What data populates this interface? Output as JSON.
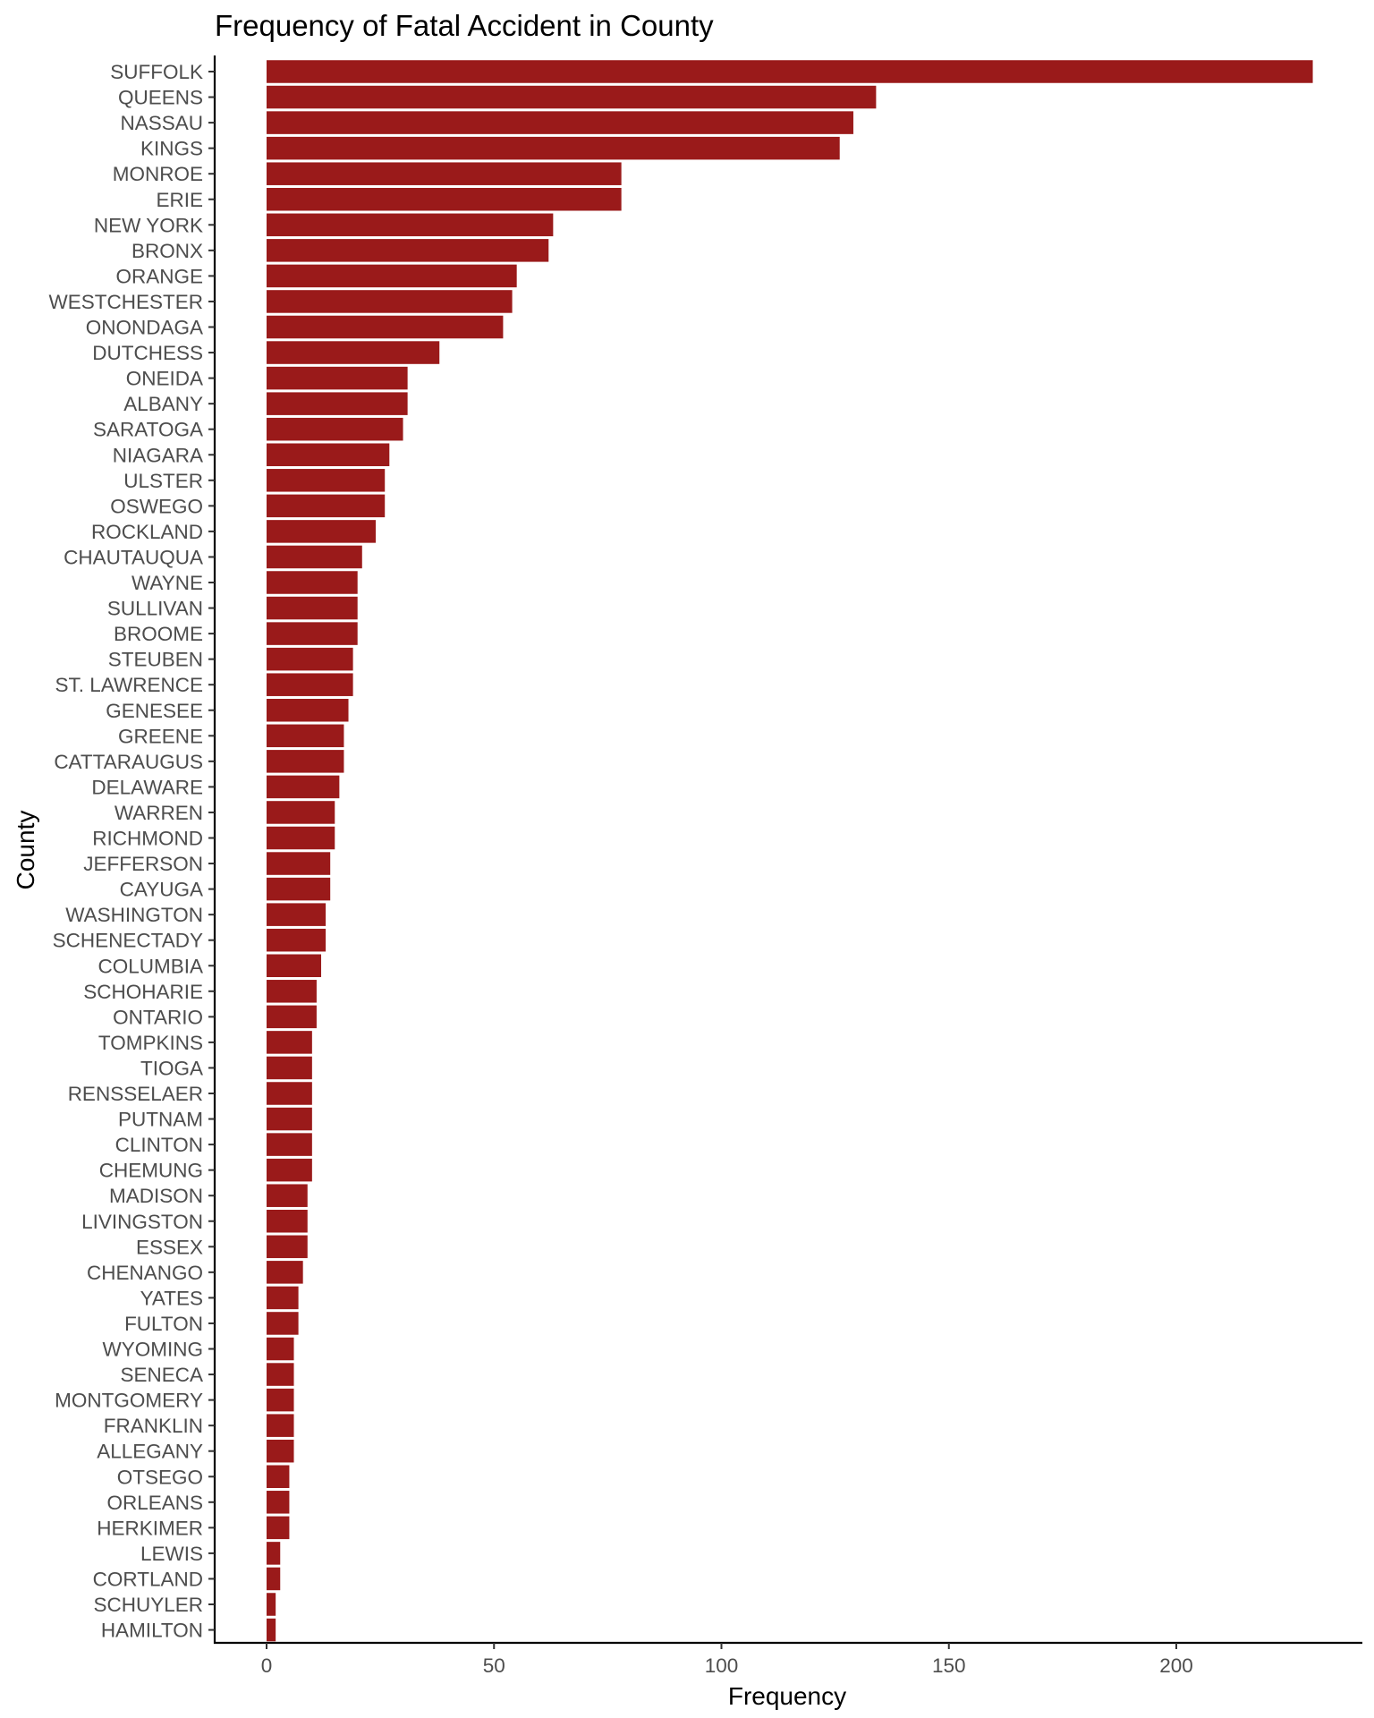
{
  "chart_data": {
    "type": "bar",
    "orientation": "horizontal",
    "title": "Frequency of Fatal Accident in County",
    "xlabel": "Frequency",
    "ylabel": "County",
    "xlim": [
      0,
      232
    ],
    "x_ticks": [
      0,
      50,
      100,
      150,
      200
    ],
    "grid": false,
    "legend": "none",
    "bar_color": "#9a1a1a",
    "categories": [
      "SUFFOLK",
      "QUEENS",
      "NASSAU",
      "KINGS",
      "MONROE",
      "ERIE",
      "NEW YORK",
      "BRONX",
      "ORANGE",
      "WESTCHESTER",
      "ONONDAGA",
      "DUTCHESS",
      "ONEIDA",
      "ALBANY",
      "SARATOGA",
      "NIAGARA",
      "ULSTER",
      "OSWEGO",
      "ROCKLAND",
      "CHAUTAUQUA",
      "WAYNE",
      "SULLIVAN",
      "BROOME",
      "STEUBEN",
      "ST. LAWRENCE",
      "GENESEE",
      "GREENE",
      "CATTARAUGUS",
      "DELAWARE",
      "WARREN",
      "RICHMOND",
      "JEFFERSON",
      "CAYUGA",
      "WASHINGTON",
      "SCHENECTADY",
      "COLUMBIA",
      "SCHOHARIE",
      "ONTARIO",
      "TOMPKINS",
      "TIOGA",
      "RENSSELAER",
      "PUTNAM",
      "CLINTON",
      "CHEMUNG",
      "MADISON",
      "LIVINGSTON",
      "ESSEX",
      "CHENANGO",
      "YATES",
      "FULTON",
      "WYOMING",
      "SENECA",
      "MONTGOMERY",
      "FRANKLIN",
      "ALLEGANY",
      "OTSEGO",
      "ORLEANS",
      "HERKIMER",
      "LEWIS",
      "CORTLAND",
      "SCHUYLER",
      "HAMILTON"
    ],
    "values": [
      230,
      134,
      129,
      126,
      78,
      78,
      63,
      62,
      55,
      54,
      52,
      38,
      31,
      31,
      30,
      27,
      26,
      26,
      24,
      21,
      20,
      20,
      20,
      19,
      19,
      18,
      17,
      17,
      16,
      15,
      15,
      14,
      14,
      13,
      13,
      12,
      11,
      11,
      10,
      10,
      10,
      10,
      10,
      10,
      9,
      9,
      9,
      8,
      7,
      7,
      6,
      6,
      6,
      6,
      6,
      5,
      5,
      5,
      3,
      3,
      2,
      2
    ]
  }
}
